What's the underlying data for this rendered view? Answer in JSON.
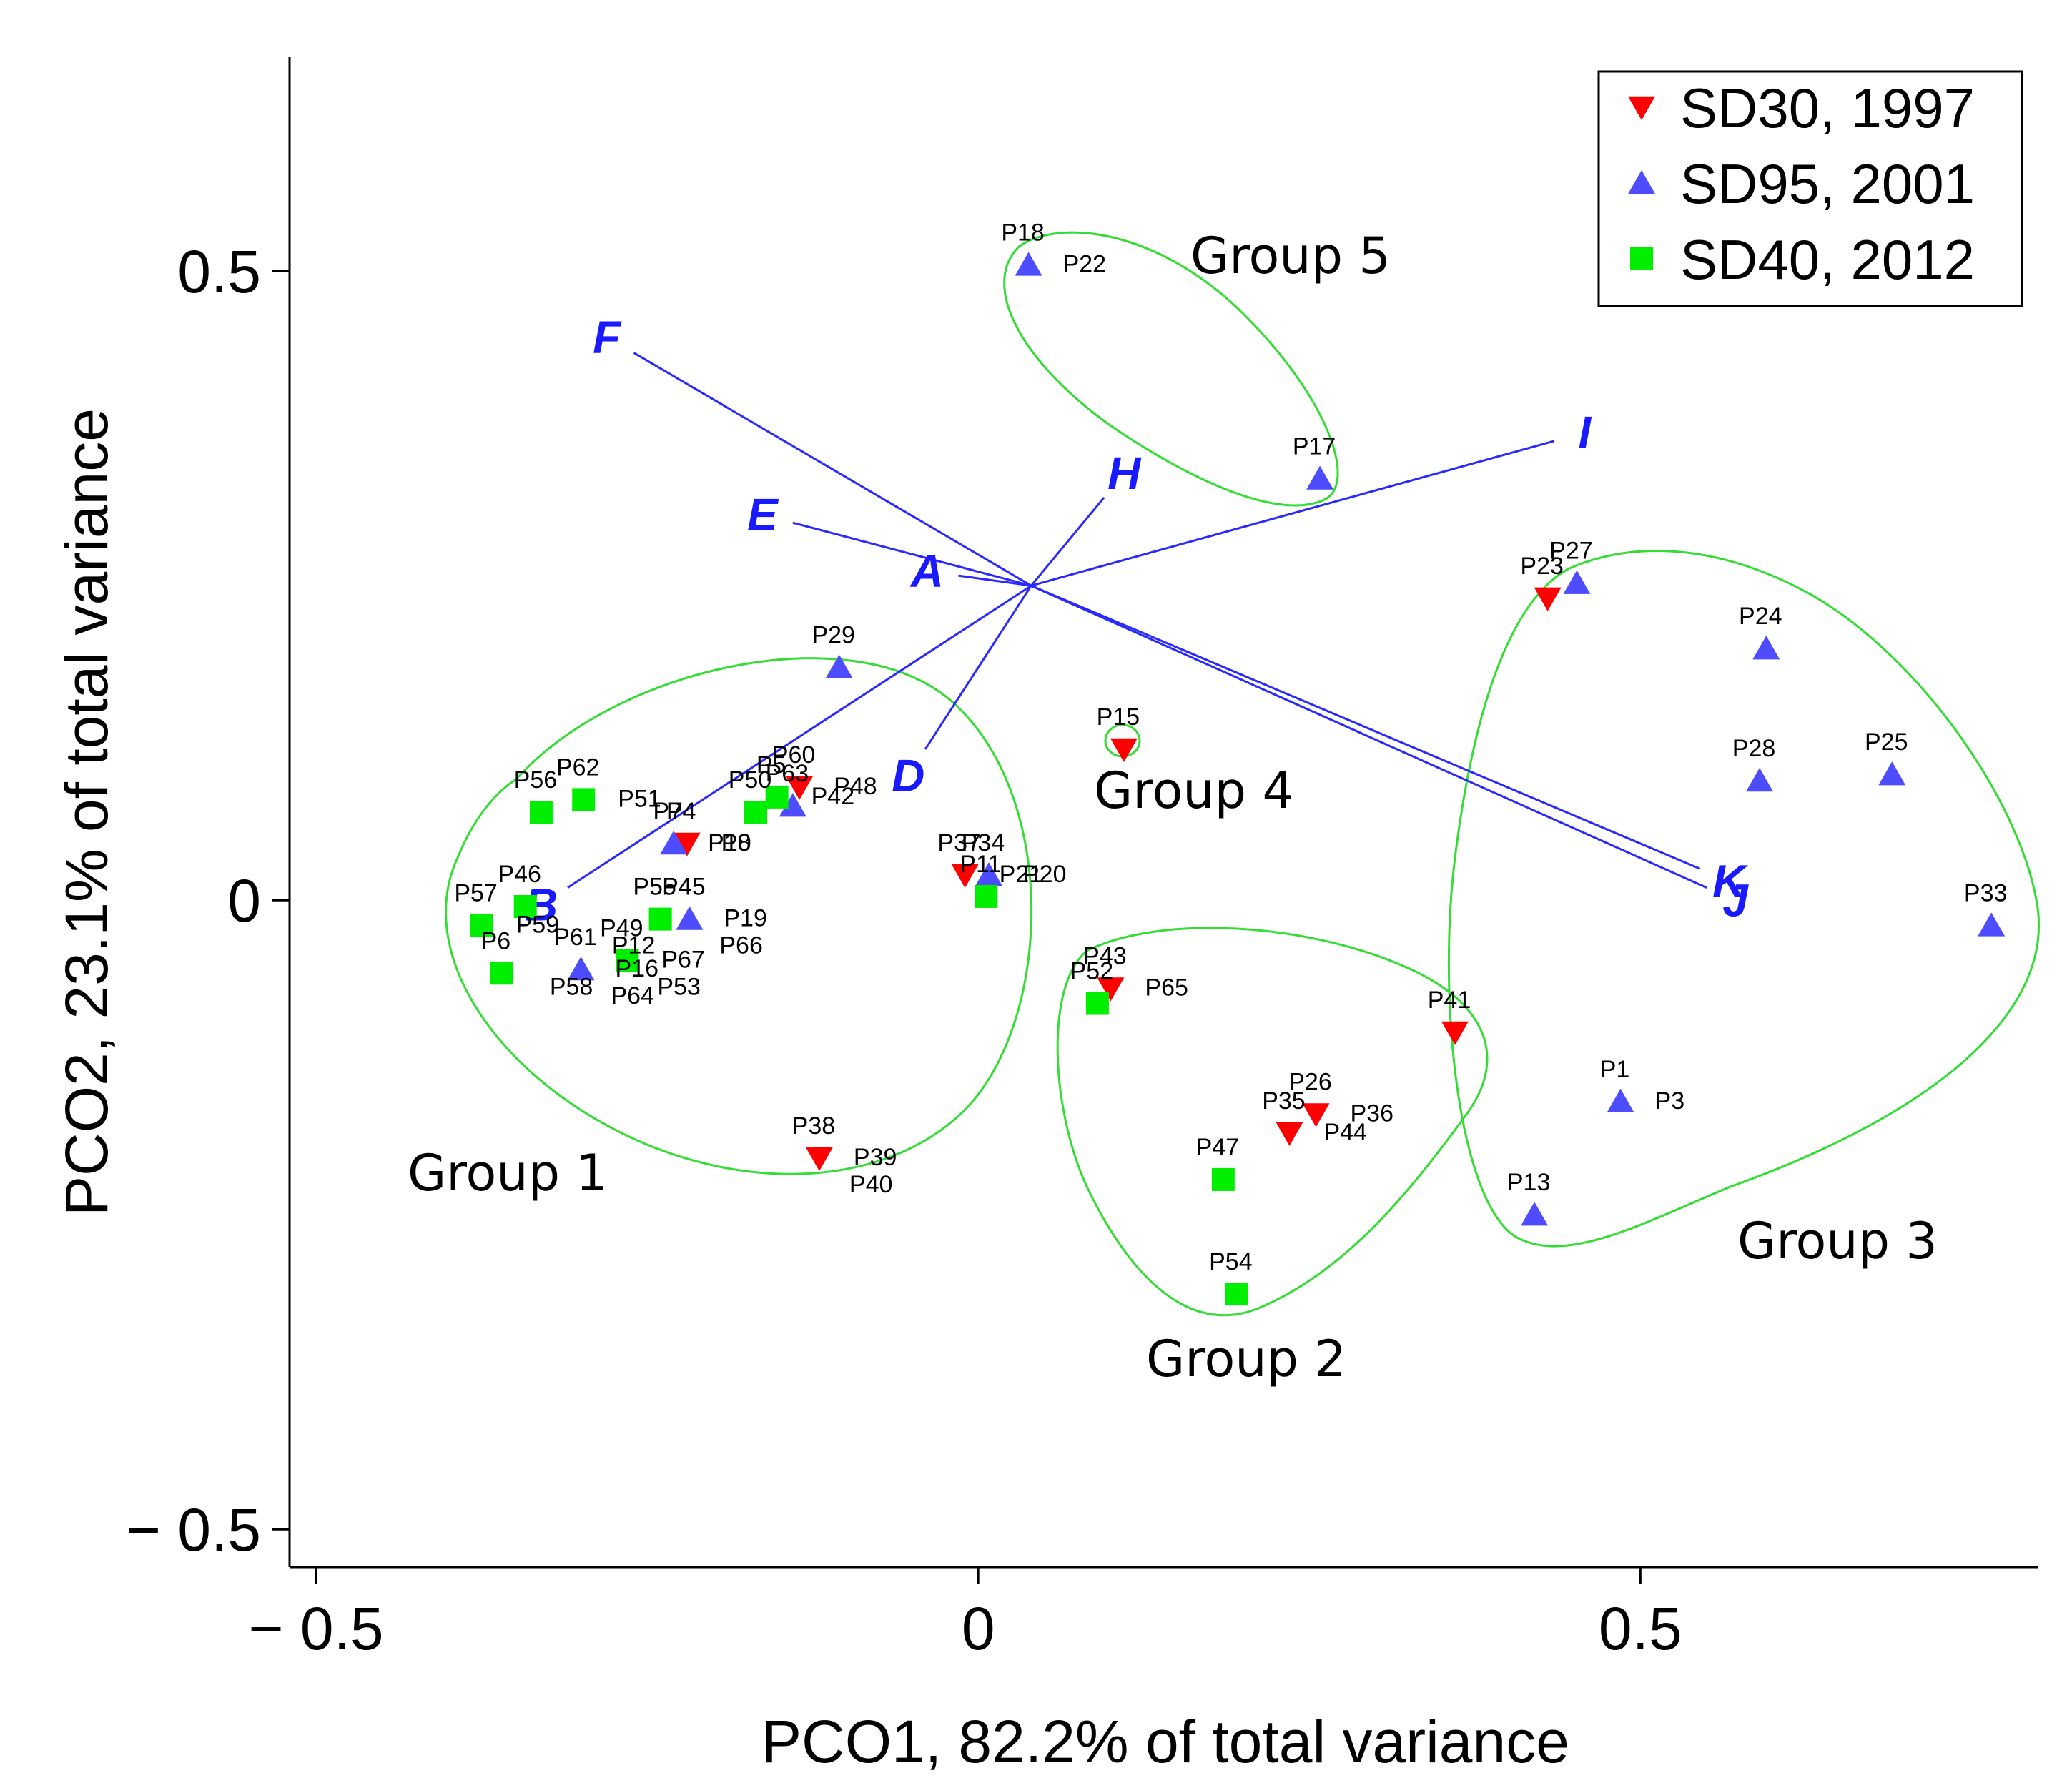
{
  "chart_data": {
    "type": "scatter",
    "xlabel": "PCO1, 82.2% of total variance",
    "ylabel": "PCO2, 23.1% of total variance",
    "xlim": [
      -0.52,
      0.8
    ],
    "ylim": [
      -0.53,
      0.67
    ],
    "x_ticks": [
      -0.5,
      0,
      0.5
    ],
    "x_tick_labels": [
      "− 0.5",
      "0",
      "0.5"
    ],
    "y_ticks": [
      -0.5,
      0,
      0.5
    ],
    "y_tick_labels": [
      "− 0.5",
      "0",
      "0.5"
    ],
    "grid": false,
    "legend_position": "top-right",
    "series": [
      {
        "name": "SD30, 1997",
        "marker": "triangle-down",
        "color": "#ff0000",
        "points": [
          {
            "label": "P23",
            "x": 0.43,
            "y": 0.24
          },
          {
            "label": "P15",
            "x": 0.11,
            "y": 0.12
          },
          {
            "label": "P60",
            "x": -0.135,
            "y": 0.09
          },
          {
            "label": "P4",
            "x": -0.22,
            "y": 0.045
          },
          {
            "label": "P37",
            "x": -0.01,
            "y": 0.02
          },
          {
            "label": "P43",
            "x": 0.1,
            "y": -0.07
          },
          {
            "label": "P41",
            "x": 0.36,
            "y": -0.105
          },
          {
            "label": "P26",
            "x": 0.255,
            "y": -0.17
          },
          {
            "label": "P35",
            "x": 0.235,
            "y": -0.185
          },
          {
            "label": "P38",
            "x": -0.12,
            "y": -0.205
          }
        ]
      },
      {
        "name": "SD95, 2001",
        "marker": "triangle-up",
        "color": "#4d4dff",
        "points": [
          {
            "label": "P18",
            "x": 0.038,
            "y": 0.505
          },
          {
            "label": "P17",
            "x": 0.258,
            "y": 0.335
          },
          {
            "label": "P27",
            "x": 0.452,
            "y": 0.252
          },
          {
            "label": "P24",
            "x": 0.595,
            "y": 0.2
          },
          {
            "label": "P29",
            "x": -0.105,
            "y": 0.185
          },
          {
            "label": "P28",
            "x": 0.59,
            "y": 0.095
          },
          {
            "label": "P25",
            "x": 0.69,
            "y": 0.1
          },
          {
            "label": "P63",
            "x": -0.14,
            "y": 0.075
          },
          {
            "label": "P7",
            "x": -0.23,
            "y": 0.045
          },
          {
            "label": "P34",
            "x": 0.008,
            "y": 0.02
          },
          {
            "label": "P45",
            "x": -0.218,
            "y": -0.015
          },
          {
            "label": "P33",
            "x": 0.765,
            "y": -0.02
          },
          {
            "label": "P61",
            "x": -0.3,
            "y": -0.055
          },
          {
            "label": "P1",
            "x": 0.485,
            "y": -0.16
          },
          {
            "label": "P13",
            "x": 0.42,
            "y": -0.25
          }
        ]
      },
      {
        "name": "SD40, 2012",
        "marker": "square",
        "color": "#00ee00",
        "points": [
          {
            "label": "P62",
            "x": -0.298,
            "y": 0.08
          },
          {
            "label": "P56",
            "x": -0.33,
            "y": 0.07
          },
          {
            "label": "P5",
            "x": -0.152,
            "y": 0.082
          },
          {
            "label": "P50",
            "x": -0.168,
            "y": 0.07
          },
          {
            "label": "P46",
            "x": -0.342,
            "y": -0.005
          },
          {
            "label": "P57",
            "x": -0.375,
            "y": -0.02
          },
          {
            "label": "P6",
            "x": -0.36,
            "y": -0.058
          },
          {
            "label": "P55",
            "x": -0.24,
            "y": -0.015
          },
          {
            "label": "P49",
            "x": -0.265,
            "y": -0.048
          },
          {
            "label": "P11",
            "x": 0.006,
            "y": 0.003
          },
          {
            "label": "P52",
            "x": 0.09,
            "y": -0.082
          },
          {
            "label": "P47",
            "x": 0.185,
            "y": -0.222
          },
          {
            "label": "P54",
            "x": 0.195,
            "y": -0.313
          }
        ]
      }
    ],
    "extra_point_labels": [
      {
        "text": "P22",
        "near": "P18"
      },
      {
        "text": "P42",
        "near": "P5"
      },
      {
        "text": "P48",
        "near": "P60"
      },
      {
        "text": "P10",
        "near": "P7"
      },
      {
        "text": "P8",
        "near": "P4"
      },
      {
        "text": "P51",
        "near": "P62"
      },
      {
        "text": "P20",
        "near": "P34"
      },
      {
        "text": "P21",
        "near": "P37"
      },
      {
        "text": "P19",
        "near": "P45"
      },
      {
        "text": "P66",
        "near": "P45"
      },
      {
        "text": "P12",
        "near": "P45"
      },
      {
        "text": "P67",
        "near": "P49"
      },
      {
        "text": "P53",
        "near": "P49"
      },
      {
        "text": "P58",
        "near": "P49"
      },
      {
        "text": "P59",
        "near": "P57"
      },
      {
        "text": "P16",
        "near": "P61"
      },
      {
        "text": "P64",
        "near": "P61"
      },
      {
        "text": "P65",
        "near": "P43"
      },
      {
        "text": "P44",
        "near": "P35"
      },
      {
        "text": "P36",
        "near": "P26"
      },
      {
        "text": "P3",
        "near": "P1"
      },
      {
        "text": "P39",
        "near": "P38"
      },
      {
        "text": "P40",
        "near": "P38"
      }
    ],
    "vectors": {
      "origin": [
        0.04,
        0.25
      ],
      "items": [
        {
          "label": "F",
          "x": -0.26,
          "y": 0.435
        },
        {
          "label": "E",
          "x": -0.14,
          "y": 0.3
        },
        {
          "label": "A",
          "x": -0.015,
          "y": 0.258
        },
        {
          "label": "H",
          "x": 0.095,
          "y": 0.32
        },
        {
          "label": "I",
          "x": 0.435,
          "y": 0.365
        },
        {
          "label": "D",
          "x": -0.04,
          "y": 0.12
        },
        {
          "label": "B",
          "x": -0.31,
          "y": 0.01
        },
        {
          "label": "K",
          "x": 0.545,
          "y": 0.025
        },
        {
          "label": "J",
          "x": 0.55,
          "y": 0.01
        }
      ]
    },
    "groups": [
      {
        "label": "Group 1"
      },
      {
        "label": "Group 2"
      },
      {
        "label": "Group 3"
      },
      {
        "label": "Group 4"
      },
      {
        "label": "Group 5"
      }
    ]
  }
}
